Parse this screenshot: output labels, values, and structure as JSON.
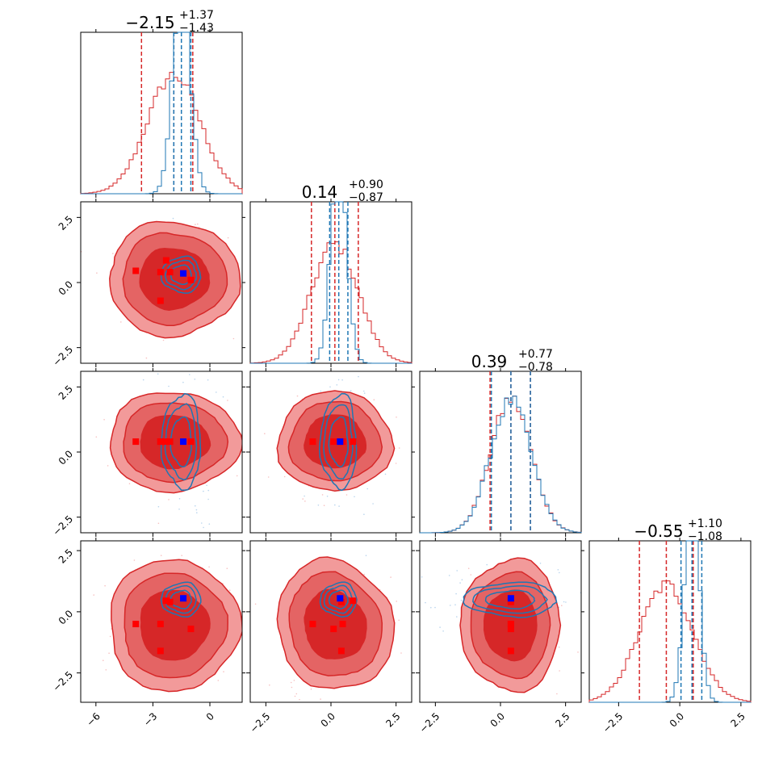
{
  "chart_data": {
    "type": "corner",
    "parameters": 4,
    "series": [
      {
        "name": "",
        "color": "#d62728",
        "filled_contours": true
      },
      {
        "name": "",
        "color": "#1f77b4",
        "filled_contours": false
      }
    ],
    "marker_colors": {
      "red": "#ff0000",
      "blue": "#0000ff"
    },
    "axis_ranges": [
      [
        -6.8,
        1.7
      ],
      [
        -3.1,
        3.1
      ],
      [
        -3.1,
        3.1
      ],
      [
        -3.7,
        2.9
      ]
    ],
    "tick_values": [
      [
        -6,
        -3,
        0
      ],
      [
        -2.5,
        0.0,
        2.5
      ],
      [
        -2.5,
        0.0,
        2.5
      ],
      [
        -2.5,
        0.0,
        2.5
      ]
    ],
    "tick_labels": [
      [
        "−6",
        "−3",
        "0"
      ],
      [
        "−2.5",
        "0.0",
        "2.5"
      ],
      [
        "−2.5",
        "0.0",
        "2.5"
      ],
      [
        "−2.5",
        "0.0",
        "2.5"
      ]
    ],
    "titles": [
      {
        "value": "−2.15",
        "upper": "+1.37",
        "lower": "−1.43"
      },
      {
        "value": "0.14",
        "upper": "+0.90",
        "lower": "−0.87"
      },
      {
        "value": "0.39",
        "upper": "+0.77",
        "lower": "−0.78"
      },
      {
        "value": "−0.55",
        "upper": "+1.10",
        "lower": "−1.08"
      }
    ],
    "marginals": [
      {
        "red": {
          "center": -1.9,
          "sigma": 1.4,
          "quantiles": [
            -3.6,
            -0.9
          ]
        },
        "blue": {
          "center": -1.5,
          "sigma": 0.45,
          "quantiles": [
            -1.9,
            -1.0
          ]
        }
      },
      {
        "red": {
          "center": 0.15,
          "sigma": 0.9,
          "quantiles": [
            -0.75,
            1.05
          ]
        },
        "blue": {
          "center": 0.3,
          "sigma": 0.3,
          "quantiles": [
            -0.05,
            0.65
          ]
        }
      },
      {
        "red": {
          "center": 0.4,
          "sigma": 0.78,
          "quantiles": [
            -0.4,
            1.15
          ]
        },
        "blue": {
          "center": 0.4,
          "sigma": 0.78,
          "quantiles": [
            -0.35,
            1.15
          ]
        }
      },
      {
        "red": {
          "center": -0.55,
          "sigma": 1.1,
          "quantiles": [
            -1.65,
            0.55
          ]
        },
        "blue": {
          "center": 0.5,
          "sigma": 0.3,
          "quantiles": [
            0.05,
            0.9
          ]
        }
      }
    ],
    "markers": {
      "red": [
        [
          -3.9,
          0.45,
          0.4,
          -0.5
        ],
        [
          -2.3,
          0.85,
          0.4,
          0.45
        ],
        [
          -1.0,
          0.1,
          0.4,
          -0.7
        ],
        [
          -2.6,
          0.4,
          0.4,
          -1.6
        ],
        [
          -2.1,
          0.4,
          0.4,
          0.4
        ],
        [
          -2.6,
          -0.7,
          0.4,
          -0.5
        ]
      ],
      "blue": [
        [
          -1.4,
          0.35,
          0.4,
          0.55
        ]
      ]
    }
  }
}
